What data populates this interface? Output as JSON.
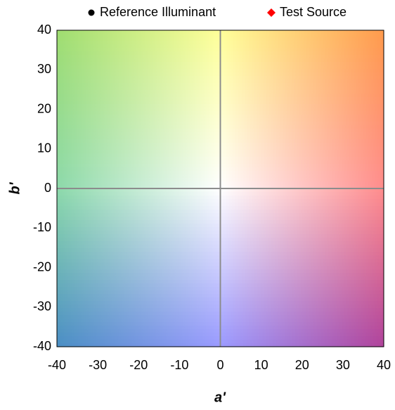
{
  "chart_data": {
    "type": "scatter",
    "xlabel": "a'",
    "ylabel": "b'",
    "series": [
      {
        "name": "Reference Illuminant",
        "color": "#000000",
        "marker": "circle",
        "x": [],
        "values": []
      },
      {
        "name": "Test Source",
        "color": "#ff0000",
        "marker": "diamond",
        "x": [],
        "values": []
      }
    ],
    "xlim": [
      -40,
      40
    ],
    "ylim": [
      -40,
      40
    ],
    "xticks": [
      -40,
      -30,
      -20,
      -10,
      0,
      10,
      20,
      30,
      40
    ],
    "yticks": [
      -40,
      -30,
      -20,
      -10,
      0,
      10,
      20,
      30,
      40
    ],
    "zero_lines": true,
    "legend": "top"
  }
}
